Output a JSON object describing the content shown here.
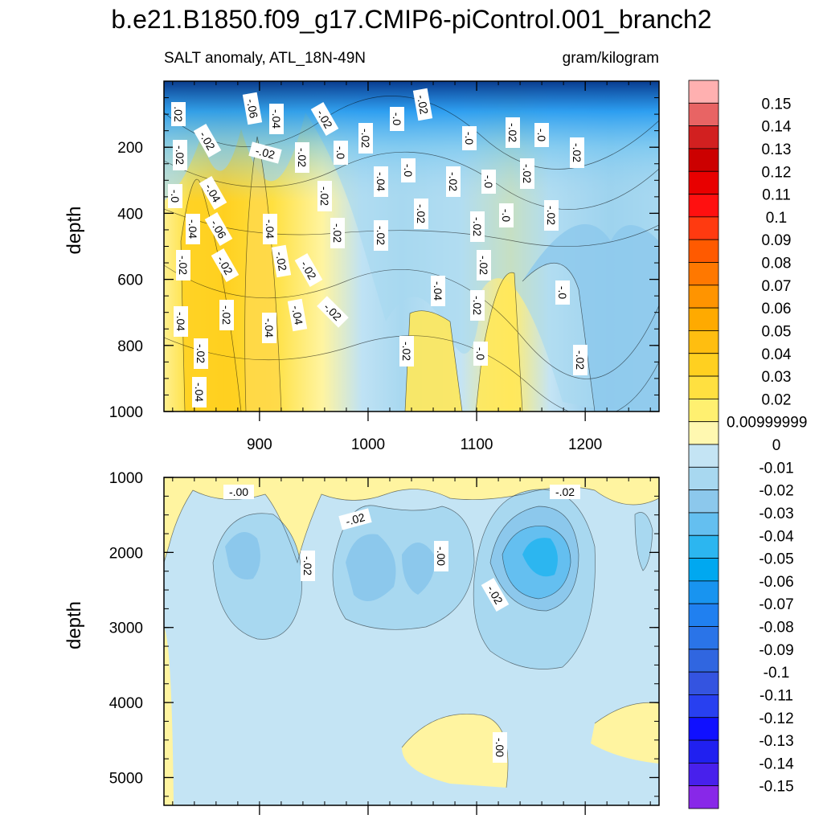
{
  "chart_data": {
    "type": "heatmap",
    "title": "b.e21.B1850.f09_g17.CMIP6-piControl.001_branch2",
    "subtitle_left": "SALT anomaly, ATL_18N-49N",
    "subtitle_right": "gram/kilogram",
    "xlim": [
      812,
      1268
    ],
    "x_ticks": [
      900,
      1000,
      1100,
      1200
    ],
    "x_tick_labels": [
      "900",
      "1000",
      "1100",
      "1200"
    ],
    "panels": [
      {
        "name": "upper",
        "ylabel": "depth",
        "ylim": [
          0,
          1000
        ],
        "y_ticks": [
          200,
          400,
          600,
          800,
          1000
        ],
        "y_tick_labels": [
          "200",
          "400",
          "600",
          "800",
          "1000"
        ],
        "contour_labels": [
          ".02",
          "-.02",
          "-.0",
          "-.04",
          "-.02",
          "-.04",
          "-.02",
          "-.04",
          "-.02",
          "-.04",
          "-.06",
          "-.02",
          "-.02",
          "-.06",
          "-.02",
          "-.04",
          "-.02",
          "-.04",
          "-.04",
          "-.02",
          "-.02",
          "-.04",
          "-.02",
          "-.02",
          "-.02",
          "-.02",
          "-.0",
          "-.02",
          "-.04",
          "-.02",
          "-.0",
          "-.0",
          "-.02",
          "-.02",
          "-.02",
          "-.04",
          "-.02",
          "-.0",
          "-.02",
          "-.0",
          "-.02",
          "-.02",
          "-.0",
          "-.0",
          "-.02",
          "-.02",
          "-.0",
          "-.02",
          "-.0",
          "-.02",
          "-.02"
        ]
      },
      {
        "name": "lower",
        "ylabel": "depth",
        "ylim": [
          1000,
          5370
        ],
        "y_ticks": [
          1000,
          2000,
          3000,
          4000,
          5000
        ],
        "y_tick_labels": [
          "1000",
          "2000",
          "3000",
          "4000",
          "5000"
        ],
        "contour_labels": [
          "-.00",
          "-.02",
          "-.02",
          "-.00",
          "-.02",
          "-.02",
          "-.00"
        ]
      }
    ],
    "colorbar": {
      "levels": [
        "0.15",
        "0.14",
        "0.13",
        "0.12",
        "0.11",
        "0.1",
        "0.09",
        "0.08",
        "0.07",
        "0.06",
        "0.05",
        "0.04",
        "0.03",
        "0.02",
        "0.00999999",
        "0",
        "-0.01",
        "-0.02",
        "-0.03",
        "-0.04",
        "-0.05",
        "-0.06",
        "-0.07",
        "-0.08",
        "-0.09",
        "-0.1",
        "-0.11",
        "-0.12",
        "-0.13",
        "-0.14",
        "-0.15"
      ],
      "colors": [
        "#ffb0b0",
        "#e86464",
        "#d22020",
        "#cc0000",
        "#e80000",
        "#ff1010",
        "#ff3a10",
        "#ff5a00",
        "#ff7800",
        "#ff9400",
        "#ffaa00",
        "#ffbe10",
        "#ffd020",
        "#ffe040",
        "#fff070",
        "#fff8b0",
        "#c4e4f4",
        "#a8d8f0",
        "#8cc8ec",
        "#64bff0",
        "#2cb6f0",
        "#00a8f0",
        "#1894f0",
        "#2080f0",
        "#2a74e8",
        "#3066e0",
        "#3454e0",
        "#2840f0",
        "#1010ff",
        "#2020f0",
        "#4820ec",
        "#8828e8"
      ]
    }
  }
}
